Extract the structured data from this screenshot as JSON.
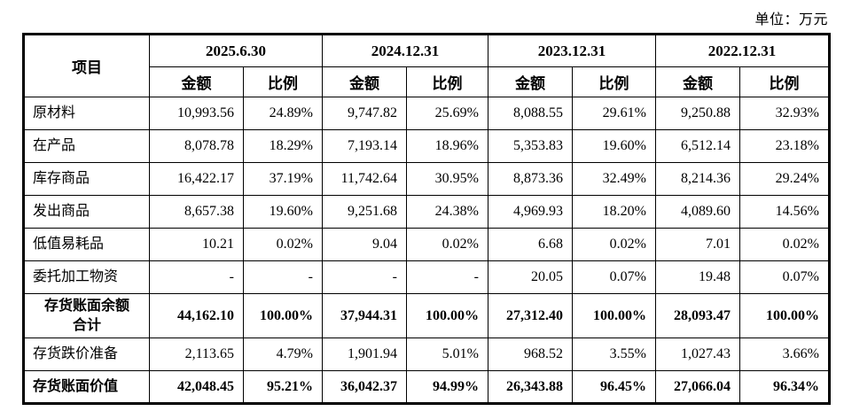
{
  "page": {
    "unit_label": "单位：万元"
  },
  "table": {
    "item_header": "项目",
    "periods": [
      "2025.6.30",
      "2024.12.31",
      "2023.12.31",
      "2022.12.31"
    ],
    "amount_label": "金额",
    "ratio_label": "比例",
    "rows": [
      {
        "label": "原材料",
        "bold": false,
        "align": "left",
        "values": [
          "10,993.56",
          "24.89%",
          "9,747.82",
          "25.69%",
          "8,088.55",
          "29.61%",
          "9,250.88",
          "32.93%"
        ]
      },
      {
        "label": "在产品",
        "bold": false,
        "align": "left",
        "values": [
          "8,078.78",
          "18.29%",
          "7,193.14",
          "18.96%",
          "5,353.83",
          "19.60%",
          "6,512.14",
          "23.18%"
        ]
      },
      {
        "label": "库存商品",
        "bold": false,
        "align": "left",
        "values": [
          "16,422.17",
          "37.19%",
          "11,742.64",
          "30.95%",
          "8,873.36",
          "32.49%",
          "8,214.36",
          "29.24%"
        ]
      },
      {
        "label": "发出商品",
        "bold": false,
        "align": "left",
        "values": [
          "8,657.38",
          "19.60%",
          "9,251.68",
          "24.38%",
          "4,969.93",
          "18.20%",
          "4,089.60",
          "14.56%"
        ]
      },
      {
        "label": "低值易耗品",
        "bold": false,
        "align": "left",
        "values": [
          "10.21",
          "0.02%",
          "9.04",
          "0.02%",
          "6.68",
          "0.02%",
          "7.01",
          "0.02%"
        ]
      },
      {
        "label": "委托加工物资",
        "bold": false,
        "align": "left",
        "values": [
          "-",
          "-",
          "-",
          "-",
          "20.05",
          "0.07%",
          "19.48",
          "0.07%"
        ]
      },
      {
        "label": "存货账面余额\n合计",
        "bold": true,
        "align": "center",
        "tall": true,
        "values": [
          "44,162.10",
          "100.00%",
          "37,944.31",
          "100.00%",
          "27,312.40",
          "100.00%",
          "28,093.47",
          "100.00%"
        ]
      },
      {
        "label": "存货跌价准备",
        "bold": false,
        "align": "left",
        "values": [
          "2,113.65",
          "4.79%",
          "1,901.94",
          "5.01%",
          "968.52",
          "3.55%",
          "1,027.43",
          "3.66%"
        ]
      },
      {
        "label": "存货账面价值",
        "bold": true,
        "align": "left",
        "values": [
          "42,048.45",
          "95.21%",
          "36,042.37",
          "94.99%",
          "26,343.88",
          "96.45%",
          "27,066.04",
          "96.34%"
        ]
      }
    ]
  }
}
